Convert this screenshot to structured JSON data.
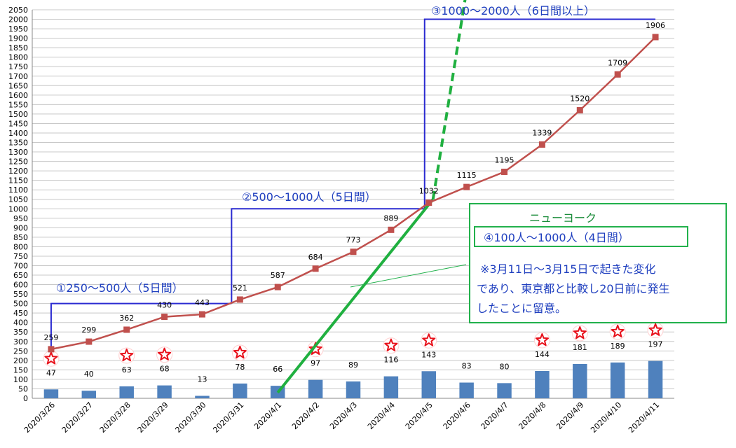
{
  "chart_data": {
    "type": "bar+line",
    "categories": [
      "2020/3/26",
      "2020/3/27",
      "2020/3/28",
      "2020/3/29",
      "2020/3/30",
      "2020/3/31",
      "2020/4/1",
      "2020/4/2",
      "2020/4/3",
      "2020/4/4",
      "2020/4/5",
      "2020/4/6",
      "2020/4/7",
      "2020/4/8",
      "2020/4/9",
      "2020/4/10",
      "2020/4/11"
    ],
    "series": [
      {
        "type": "bar",
        "color": "#4f81bd",
        "values": [
          47,
          40,
          63,
          68,
          13,
          78,
          66,
          97,
          89,
          116,
          143,
          83,
          80,
          144,
          181,
          189,
          197
        ],
        "labels": [
          "47",
          "40",
          "63",
          "68",
          "13",
          "78",
          "66",
          "97",
          "89",
          "116",
          "143",
          "83",
          "80",
          "144",
          "181",
          "189",
          "197"
        ]
      },
      {
        "type": "line",
        "color": "#c0504d",
        "values": [
          259,
          299,
          362,
          430,
          443,
          521,
          587,
          684,
          773,
          889,
          1032,
          1115,
          1195,
          1339,
          1520,
          1709,
          1906
        ],
        "labels": [
          "259",
          "299",
          "362",
          "430",
          "443",
          "521",
          "587",
          "684",
          "773",
          "889",
          "1032",
          "1115",
          "1195",
          "1339",
          "1520",
          "1709",
          "1906"
        ]
      }
    ],
    "ylim": [
      0,
      2050
    ],
    "yticks": [
      0,
      50,
      100,
      150,
      200,
      250,
      300,
      350,
      400,
      450,
      500,
      550,
      600,
      650,
      700,
      750,
      800,
      850,
      900,
      950,
      1000,
      1050,
      1100,
      1150,
      1200,
      1250,
      1300,
      1350,
      1400,
      1450,
      1500,
      1550,
      1600,
      1650,
      1700,
      1750,
      1800,
      1850,
      1900,
      1950,
      2000,
      2050
    ],
    "grid": true,
    "star_marker_days": [
      "2020/3/26",
      "2020/3/28",
      "2020/3/29",
      "2020/3/31",
      "2020/4/2",
      "2020/4/4",
      "2020/4/5",
      "2020/4/8",
      "2020/4/9",
      "2020/4/10",
      "2020/4/11"
    ],
    "annotations": {
      "step1": "①250～500人（5日間）",
      "step2": "②500～1000人（5日間）",
      "step3": "③1000～2000人（6日間以上）",
      "ny_title": "ニューヨーク",
      "ny_box": "④100人～1000人（4日間）",
      "note_lines": [
        "※3月11日～3月15日で起きた変化",
        "であり、東京都と比較し20日前に発生",
        "したことに留意。"
      ]
    },
    "colors": {
      "step_lines": "#2b2bd1",
      "green": "#20b040",
      "grid": "#c8c8c8",
      "star": "#e8101a"
    }
  }
}
